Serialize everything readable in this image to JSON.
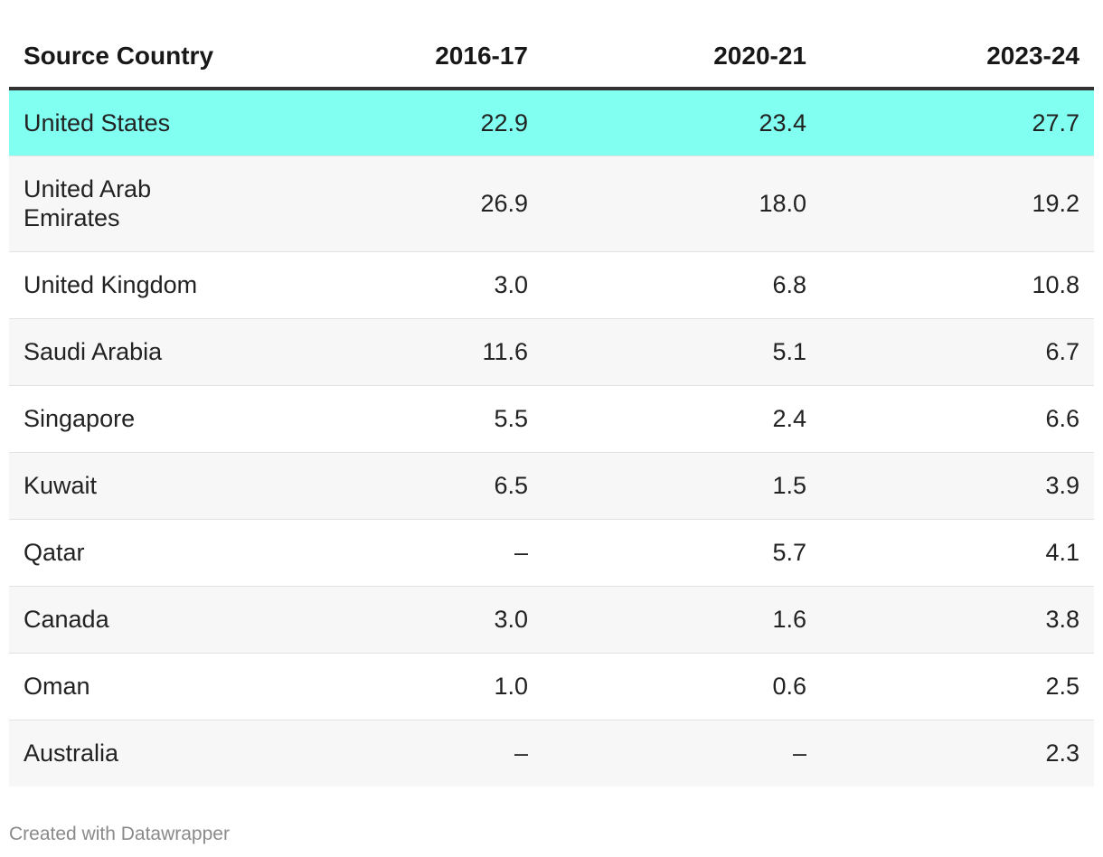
{
  "chart_data": {
    "type": "table",
    "columns": [
      "Source Country",
      "2016-17",
      "2020-21",
      "2023-24"
    ],
    "rows": [
      {
        "country": "United States",
        "v2016_17": "22.9",
        "v2020_21": "23.4",
        "v2023_24": "27.7",
        "highlight": true
      },
      {
        "country": "United Arab Emirates",
        "v2016_17": "26.9",
        "v2020_21": "18.0",
        "v2023_24": "19.2"
      },
      {
        "country": "United Kingdom",
        "v2016_17": "3.0",
        "v2020_21": "6.8",
        "v2023_24": "10.8"
      },
      {
        "country": "Saudi Arabia",
        "v2016_17": "11.6",
        "v2020_21": "5.1",
        "v2023_24": "6.7"
      },
      {
        "country": "Singapore",
        "v2016_17": "5.5",
        "v2020_21": "2.4",
        "v2023_24": "6.6"
      },
      {
        "country": "Kuwait",
        "v2016_17": "6.5",
        "v2020_21": "1.5",
        "v2023_24": "3.9"
      },
      {
        "country": "Qatar",
        "v2016_17": "–",
        "v2020_21": "5.7",
        "v2023_24": "4.1"
      },
      {
        "country": "Canada",
        "v2016_17": "3.0",
        "v2020_21": "1.6",
        "v2023_24": "3.8"
      },
      {
        "country": "Oman",
        "v2016_17": "1.0",
        "v2020_21": "0.6",
        "v2023_24": "2.5"
      },
      {
        "country": "Australia",
        "v2016_17": "–",
        "v2020_21": "–",
        "v2023_24": "2.3"
      }
    ],
    "highlight_color": "#81fff0",
    "stripe_color": "#f7f7f7"
  },
  "credit": "Created with Datawrapper"
}
